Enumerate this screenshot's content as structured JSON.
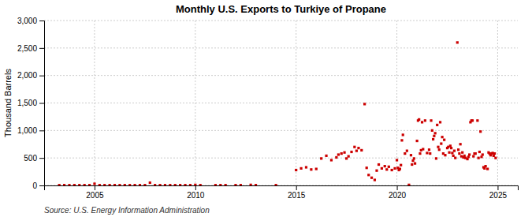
{
  "chart_data": {
    "type": "scatter",
    "title": "Monthly U.S. Exports to Turkiye of Propane",
    "y_label": "Thousand Barrels",
    "annotations": [
      "Source: U.S. Energy Information Administration"
    ],
    "color": "#CC0000",
    "marker": "square",
    "grid": true,
    "xlim": [
      2002.5,
      2026.0
    ],
    "ylim": [
      0,
      3000
    ],
    "xticks": [
      2005,
      2010,
      2015,
      2020,
      2025
    ],
    "yticks": [
      0,
      500,
      {
        "value": 1000,
        "label": "1,000"
      },
      {
        "value": 1500,
        "label": "1,500"
      },
      {
        "value": 2000,
        "label": "2,000"
      },
      {
        "value": 2500,
        "label": "2,500"
      },
      {
        "value": 3000,
        "label": "3,000"
      }
    ],
    "x": [
      2003.25,
      2003.5,
      2003.75,
      2004.0,
      2004.25,
      2004.5,
      2004.75,
      2005.0,
      2005.25,
      2005.5,
      2005.75,
      2006.0,
      2006.25,
      2006.5,
      2006.75,
      2007.0,
      2007.25,
      2007.5,
      2007.75,
      2008.0,
      2008.25,
      2008.5,
      2008.75,
      2009.0,
      2009.25,
      2009.5,
      2009.75,
      2010.0,
      2010.25,
      2011.0,
      2011.25,
      2011.5,
      2012.0,
      2012.25,
      2012.75,
      2013.0,
      2014.0,
      2015.0,
      2015.25,
      2015.5,
      2015.75,
      2016.0,
      2016.25,
      2016.5,
      2016.75,
      2017.0,
      2017.1,
      2017.25,
      2017.4,
      2017.5,
      2017.6,
      2017.75,
      2017.9,
      2018.0,
      2018.1,
      2018.25,
      2018.4,
      2018.5,
      2018.6,
      2018.75,
      2018.9,
      2019.0,
      2019.1,
      2019.25,
      2019.4,
      2019.5,
      2019.6,
      2019.75,
      2019.9,
      2020.0,
      2020.05,
      2020.1,
      2020.15,
      2020.2,
      2020.25,
      2020.3,
      2020.4,
      2020.5,
      2020.6,
      2020.7,
      2020.75,
      2020.8,
      2020.85,
      2020.9,
      2021.0,
      2021.05,
      2021.1,
      2021.15,
      2021.2,
      2021.25,
      2021.3,
      2021.4,
      2021.5,
      2021.6,
      2021.65,
      2021.7,
      2021.75,
      2021.8,
      2021.85,
      2021.9,
      2021.95,
      2022.0,
      2022.05,
      2022.1,
      2022.15,
      2022.2,
      2022.25,
      2022.3,
      2022.35,
      2022.4,
      2022.5,
      2022.55,
      2022.6,
      2022.65,
      2022.7,
      2022.75,
      2022.8,
      2022.85,
      2022.9,
      2023.0,
      2023.05,
      2023.1,
      2023.15,
      2023.2,
      2023.25,
      2023.3,
      2023.35,
      2023.4,
      2023.5,
      2023.55,
      2023.6,
      2023.65,
      2023.7,
      2023.75,
      2023.8,
      2023.85,
      2023.9,
      2024.0,
      2024.05,
      2024.1,
      2024.15,
      2024.2,
      2024.25,
      2024.3,
      2024.35,
      2024.4,
      2024.5,
      2024.55,
      2024.6,
      2024.65,
      2024.7,
      2024.75,
      2024.8,
      2024.85,
      2024.9
    ],
    "values": [
      5,
      5,
      5,
      5,
      5,
      5,
      5,
      30,
      5,
      5,
      5,
      5,
      5,
      5,
      5,
      5,
      5,
      5,
      50,
      5,
      5,
      5,
      5,
      5,
      5,
      5,
      5,
      10,
      5,
      5,
      5,
      5,
      5,
      5,
      10,
      5,
      5,
      280,
      310,
      330,
      290,
      300,
      490,
      540,
      460,
      510,
      560,
      580,
      600,
      490,
      530,
      610,
      700,
      630,
      680,
      640,
      1480,
      320,
      190,
      140,
      100,
      270,
      380,
      310,
      350,
      290,
      340,
      280,
      310,
      460,
      320,
      280,
      300,
      370,
      820,
      920,
      580,
      630,
      10,
      550,
      380,
      450,
      490,
      400,
      810,
      1180,
      1200,
      580,
      640,
      1150,
      660,
      1180,
      590,
      650,
      580,
      1180,
      1000,
      840,
      900,
      950,
      490,
      1100,
      700,
      650,
      1150,
      760,
      880,
      580,
      830,
      550,
      680,
      700,
      600,
      720,
      680,
      590,
      540,
      630,
      500,
      2600,
      650,
      580,
      750,
      530,
      600,
      510,
      540,
      500,
      480,
      520,
      560,
      1150,
      1180,
      1180,
      530,
      580,
      580,
      1180,
      500,
      610,
      980,
      520,
      560,
      330,
      310,
      350,
      300,
      600,
      580,
      550,
      580,
      590,
      540,
      580,
      500
    ]
  }
}
